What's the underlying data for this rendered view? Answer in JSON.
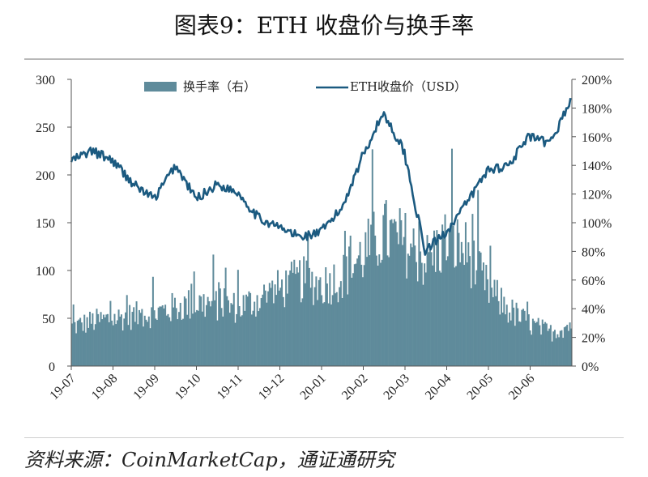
{
  "title": "图表9：ETH 收盘价与换手率",
  "source": "资料来源：CoinMarketCap，通证通研究",
  "colors": {
    "bar": "#5f8b9b",
    "line": "#1b5a80",
    "axis": "#555555"
  },
  "chart_data": {
    "type": "bar+line",
    "x_tick_labels": [
      "19-07",
      "19-08",
      "19-09",
      "19-10",
      "19-11",
      "19-12",
      "20-01",
      "20-02",
      "20-03",
      "20-04",
      "20-05",
      "20-06"
    ],
    "left_axis": {
      "range": [
        0,
        300
      ],
      "ticks": [
        "0",
        "50",
        "100",
        "150",
        "200",
        "250",
        "300"
      ]
    },
    "right_axis": {
      "range": [
        0,
        200
      ],
      "ticks": [
        "0%",
        "20%",
        "40%",
        "60%",
        "80%",
        "100%",
        "120%",
        "140%",
        "160%",
        "180%",
        "200%"
      ]
    },
    "legend": {
      "placement": "top-center"
    },
    "series": [
      {
        "name": "换手率（右）",
        "type": "bar",
        "axis": "right",
        "note": "monthly approximate turnover (%) sampled at month starts and mid-months",
        "x": [
          "19-07",
          "19-07m",
          "19-08",
          "19-08m",
          "19-09",
          "19-09m",
          "19-10",
          "19-10m",
          "19-11",
          "19-11m",
          "19-12",
          "19-12m",
          "20-01",
          "20-01m",
          "20-02",
          "20-02m",
          "20-03",
          "20-03m",
          "20-04",
          "20-04m",
          "20-05",
          "20-05m",
          "20-06",
          "20-06m",
          "20-07"
        ],
        "values": [
          28,
          32,
          34,
          36,
          38,
          42,
          45,
          44,
          42,
          48,
          55,
          62,
          58,
          64,
          80,
          95,
          88,
          75,
          90,
          82,
          55,
          40,
          30,
          24,
          30
        ]
      },
      {
        "name": "ETH收盘价（USD）",
        "type": "line",
        "axis": "left",
        "note": "approximate ETH closing price sampled semi-monthly",
        "x": [
          "19-07",
          "19-07m",
          "19-08",
          "19-08m",
          "19-09",
          "19-09m",
          "19-10",
          "19-10m",
          "19-11",
          "19-11m",
          "19-12",
          "19-12m",
          "20-01",
          "20-01m",
          "20-02",
          "20-02m",
          "20-03",
          "20-03m",
          "20-04",
          "20-04m",
          "20-05",
          "20-05m",
          "20-06",
          "20-06m",
          "20-07"
        ],
        "values": [
          215,
          225,
          215,
          190,
          175,
          210,
          175,
          190,
          182,
          155,
          145,
          135,
          140,
          165,
          220,
          265,
          225,
          120,
          140,
          170,
          205,
          210,
          240,
          232,
          278
        ]
      }
    ]
  }
}
